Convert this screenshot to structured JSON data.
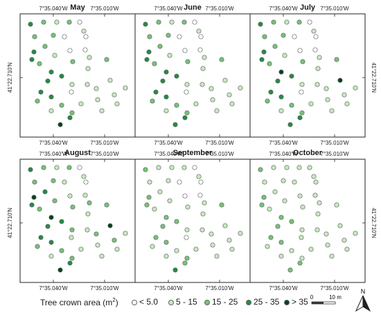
{
  "months": [
    "May",
    "June",
    "July",
    "August",
    "September",
    "October"
  ],
  "coords": {
    "lon_left": "7°35.040'W",
    "lon_right": "7°35.010'W",
    "lat": "41°22.710'N"
  },
  "classes": [
    {
      "label": "< 5.0",
      "color": "#ffffff"
    },
    {
      "label": "5 - 15",
      "color": "#c7e9c0"
    },
    {
      "label": "15 - 25",
      "color": "#74c476"
    },
    {
      "label": "25 - 35",
      "color": "#238b45"
    },
    {
      "label": "> 35",
      "color": "#00441b"
    }
  ],
  "legend": {
    "title": "Tree crown area (m",
    "title_sup": "2",
    "title_end": ")"
  },
  "scale": {
    "zero": "0",
    "end": "10 m"
  },
  "north": "N",
  "tree_classes": {
    "May": [
      3,
      2,
      1,
      2,
      0,
      2,
      2,
      0,
      1,
      0,
      2,
      3,
      1,
      0,
      3,
      2,
      0,
      3,
      3,
      2,
      1,
      1,
      2,
      1,
      3,
      1,
      0,
      3,
      1,
      1,
      3,
      2,
      1,
      1,
      1,
      2,
      1,
      1,
      2,
      3,
      4,
      1,
      1
    ],
    "June": [
      3,
      2,
      1,
      2,
      0,
      2,
      2,
      0,
      1,
      0,
      2,
      3,
      1,
      0,
      3,
      2,
      0,
      3,
      3,
      2,
      1,
      1,
      2,
      1,
      3,
      1,
      0,
      3,
      1,
      1,
      3,
      2,
      1,
      1,
      1,
      2,
      1,
      1,
      2,
      3,
      3,
      1,
      1
    ],
    "July": [
      3,
      2,
      1,
      2,
      0,
      2,
      2,
      0,
      1,
      0,
      2,
      3,
      1,
      0,
      3,
      2,
      0,
      4,
      3,
      2,
      1,
      1,
      2,
      1,
      3,
      1,
      0,
      3,
      1,
      4,
      3,
      2,
      1,
      1,
      1,
      2,
      1,
      1,
      2,
      3,
      3,
      1,
      1
    ],
    "August": [
      3,
      2,
      1,
      2,
      0,
      2,
      2,
      1,
      1,
      0,
      3,
      4,
      2,
      1,
      3,
      2,
      1,
      4,
      3,
      2,
      1,
      2,
      2,
      1,
      3,
      2,
      1,
      3,
      2,
      4,
      3,
      2,
      2,
      1,
      1,
      2,
      1,
      1,
      2,
      3,
      4,
      1,
      1
    ],
    "September": [
      2,
      1,
      1,
      1,
      0,
      1,
      1,
      0,
      1,
      0,
      1,
      2,
      1,
      0,
      2,
      1,
      0,
      2,
      2,
      1,
      1,
      1,
      2,
      1,
      2,
      1,
      0,
      2,
      1,
      1,
      2,
      1,
      1,
      1,
      1,
      1,
      1,
      1,
      2,
      2,
      3,
      1,
      1
    ],
    "October": [
      2,
      1,
      1,
      1,
      1,
      1,
      1,
      1,
      1,
      1,
      1,
      2,
      1,
      1,
      2,
      1,
      1,
      2,
      2,
      1,
      1,
      1,
      1,
      1,
      2,
      1,
      1,
      2,
      1,
      1,
      2,
      1,
      1,
      1,
      1,
      1,
      1,
      1,
      1,
      2,
      2,
      1,
      1
    ]
  }
}
